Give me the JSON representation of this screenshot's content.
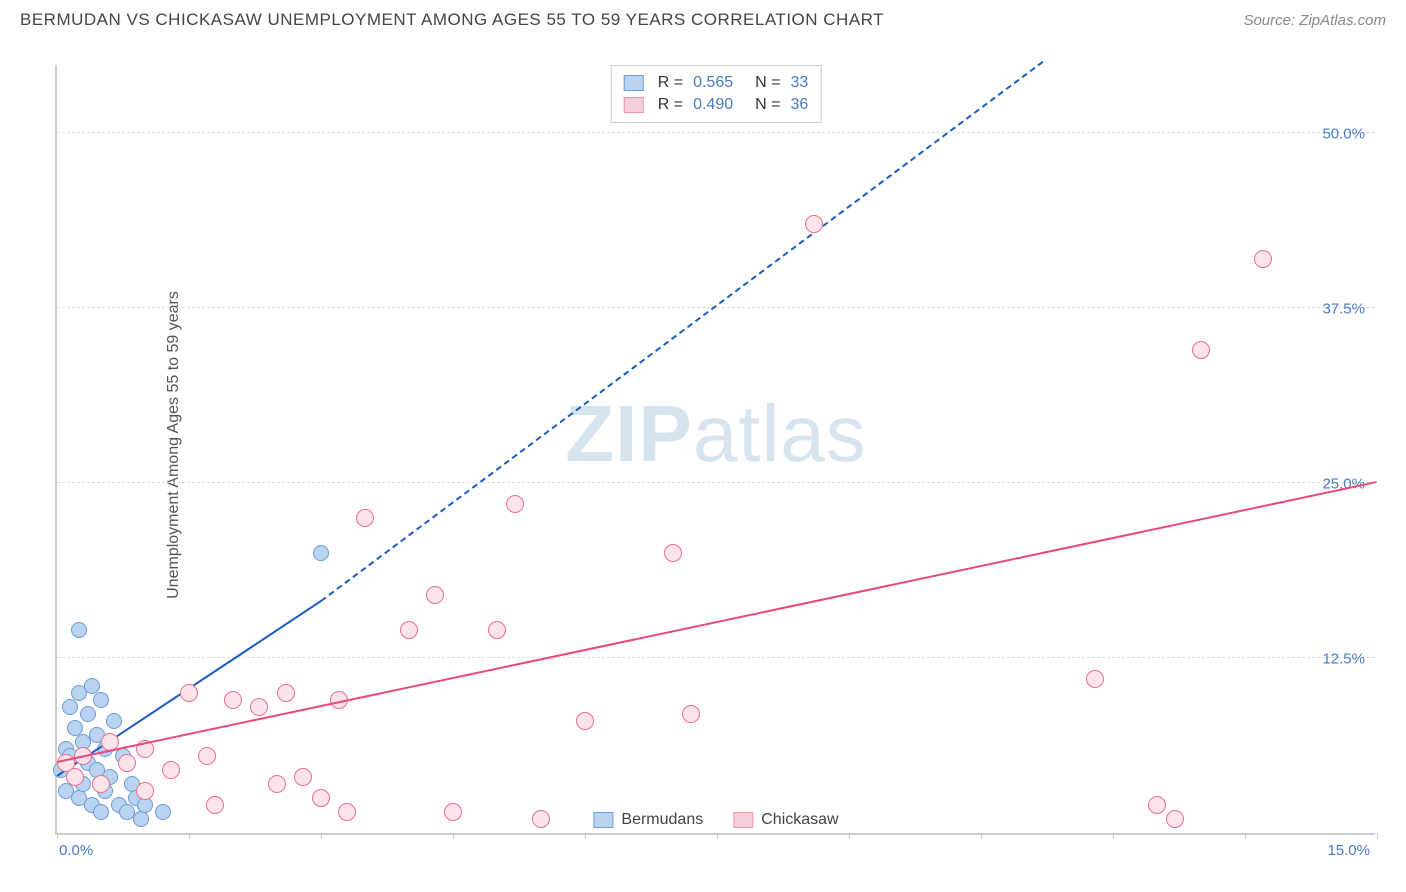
{
  "header": {
    "title": "BERMUDAN VS CHICKASAW UNEMPLOYMENT AMONG AGES 55 TO 59 YEARS CORRELATION CHART",
    "source": "Source: ZipAtlas.com"
  },
  "watermark": {
    "part1": "ZIP",
    "part2": "atlas"
  },
  "chart": {
    "type": "scatter",
    "y_axis_label": "Unemployment Among Ages 55 to 59 years",
    "background_color": "#ffffff",
    "grid_color": "#dddddd",
    "axis_color": "#cccccc",
    "xlim": [
      0,
      15
    ],
    "ylim": [
      0,
      55
    ],
    "x_ticks": [
      0,
      1.5,
      3.0,
      4.5,
      6.0,
      7.5,
      9.0,
      10.5,
      12.0,
      13.5,
      15.0
    ],
    "x_tick_labels": {
      "0": "0.0%",
      "15": "15.0%"
    },
    "y_ticks": [
      12.5,
      25.0,
      37.5,
      50.0
    ],
    "y_tick_labels": [
      "12.5%",
      "25.0%",
      "37.5%",
      "50.0%"
    ],
    "legend_top": [
      {
        "swatch_fill": "#b9d3f0",
        "swatch_border": "#6a9bd8",
        "r": "0.565",
        "n": "33"
      },
      {
        "swatch_fill": "#f8cfd9",
        "swatch_border": "#e997ab",
        "r": "0.490",
        "n": "36"
      }
    ],
    "legend_bottom": [
      {
        "swatch_fill": "#b9d3f0",
        "swatch_border": "#6a9bd8",
        "label": "Bermudans"
      },
      {
        "swatch_fill": "#f8cfd9",
        "swatch_border": "#e997ab",
        "label": "Chickasaw"
      }
    ],
    "series": [
      {
        "name": "Bermudans",
        "marker_fill": "#b9d3f0",
        "marker_border": "#6a9bd8",
        "marker_size": 16,
        "trend_color": "#1c5bbf",
        "trend_solid": {
          "x1": 0.0,
          "y1": 4.0,
          "x2": 3.0,
          "y2": 16.5
        },
        "trend_dashed": {
          "x1": 3.0,
          "y1": 16.5,
          "x2": 11.2,
          "y2": 55.0
        },
        "points": [
          [
            0.05,
            4.5
          ],
          [
            0.1,
            6.0
          ],
          [
            0.1,
            3.0
          ],
          [
            0.15,
            5.5
          ],
          [
            0.15,
            9.0
          ],
          [
            0.2,
            4.0
          ],
          [
            0.2,
            7.5
          ],
          [
            0.25,
            2.5
          ],
          [
            0.25,
            10.0
          ],
          [
            0.3,
            3.5
          ],
          [
            0.3,
            6.5
          ],
          [
            0.35,
            5.0
          ],
          [
            0.35,
            8.5
          ],
          [
            0.4,
            2.0
          ],
          [
            0.4,
            10.5
          ],
          [
            0.45,
            4.5
          ],
          [
            0.45,
            7.0
          ],
          [
            0.5,
            1.5
          ],
          [
            0.5,
            9.5
          ],
          [
            0.55,
            3.0
          ],
          [
            0.55,
            6.0
          ],
          [
            0.6,
            4.0
          ],
          [
            0.65,
            8.0
          ],
          [
            0.7,
            2.0
          ],
          [
            0.75,
            5.5
          ],
          [
            0.25,
            14.5
          ],
          [
            0.8,
            1.5
          ],
          [
            0.85,
            3.5
          ],
          [
            0.9,
            2.5
          ],
          [
            0.95,
            1.0
          ],
          [
            1.0,
            2.0
          ],
          [
            1.2,
            1.5
          ],
          [
            3.0,
            20.0
          ]
        ]
      },
      {
        "name": "Chickasaw",
        "marker_fill": "#fce4ea",
        "marker_border": "#ec6e8f",
        "marker_size": 18,
        "trend_color": "#e84b77",
        "trend_solid": {
          "x1": 0.0,
          "y1": 5.0,
          "x2": 15.0,
          "y2": 25.0
        },
        "points": [
          [
            0.1,
            5.0
          ],
          [
            0.2,
            4.0
          ],
          [
            0.3,
            5.5
          ],
          [
            0.5,
            3.5
          ],
          [
            0.8,
            5.0
          ],
          [
            1.0,
            6.0
          ],
          [
            1.3,
            4.5
          ],
          [
            1.5,
            10.0
          ],
          [
            1.7,
            5.5
          ],
          [
            1.8,
            2.0
          ],
          [
            2.0,
            9.5
          ],
          [
            2.3,
            9.0
          ],
          [
            2.5,
            3.5
          ],
          [
            2.6,
            10.0
          ],
          [
            2.8,
            4.0
          ],
          [
            3.0,
            2.5
          ],
          [
            3.2,
            9.5
          ],
          [
            3.3,
            1.5
          ],
          [
            3.5,
            22.5
          ],
          [
            4.0,
            14.5
          ],
          [
            4.3,
            17.0
          ],
          [
            4.5,
            1.5
          ],
          [
            5.0,
            14.5
          ],
          [
            5.2,
            23.5
          ],
          [
            5.5,
            1.0
          ],
          [
            6.0,
            8.0
          ],
          [
            7.0,
            20.0
          ],
          [
            7.2,
            8.5
          ],
          [
            8.6,
            43.5
          ],
          [
            11.8,
            11.0
          ],
          [
            12.5,
            2.0
          ],
          [
            12.7,
            1.0
          ],
          [
            13.0,
            34.5
          ],
          [
            13.7,
            41.0
          ],
          [
            1.0,
            3.0
          ],
          [
            0.6,
            6.5
          ]
        ]
      }
    ]
  }
}
